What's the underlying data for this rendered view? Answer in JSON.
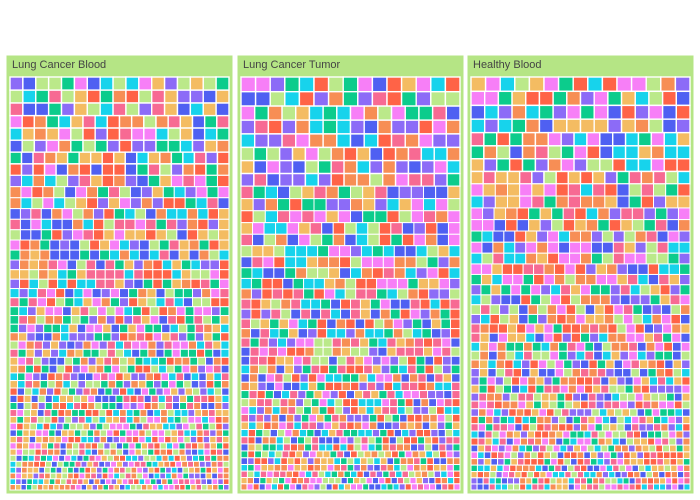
{
  "chart_data": {
    "type": "treemap",
    "description": "Three side-by-side treemap panels, each tiled with many small colored squares that shrink from top to bottom.",
    "panel_background": "#b5e585",
    "tile_border": "#ffffff",
    "palette": [
      "#8c6bf7",
      "#f76a93",
      "#bbe98a",
      "#0ccc8c",
      "#f4bc62",
      "#f78e55",
      "#17d3ec",
      "#f77ff7",
      "#4f60f2",
      "#ff6347"
    ],
    "panels": [
      {
        "title": "Lung Cancer Blood",
        "tile_rows": 47
      },
      {
        "title": "Lung Cancer Tumor",
        "tile_rows": 42
      },
      {
        "title": "Healthy Blood",
        "tile_rows": 43
      }
    ]
  }
}
